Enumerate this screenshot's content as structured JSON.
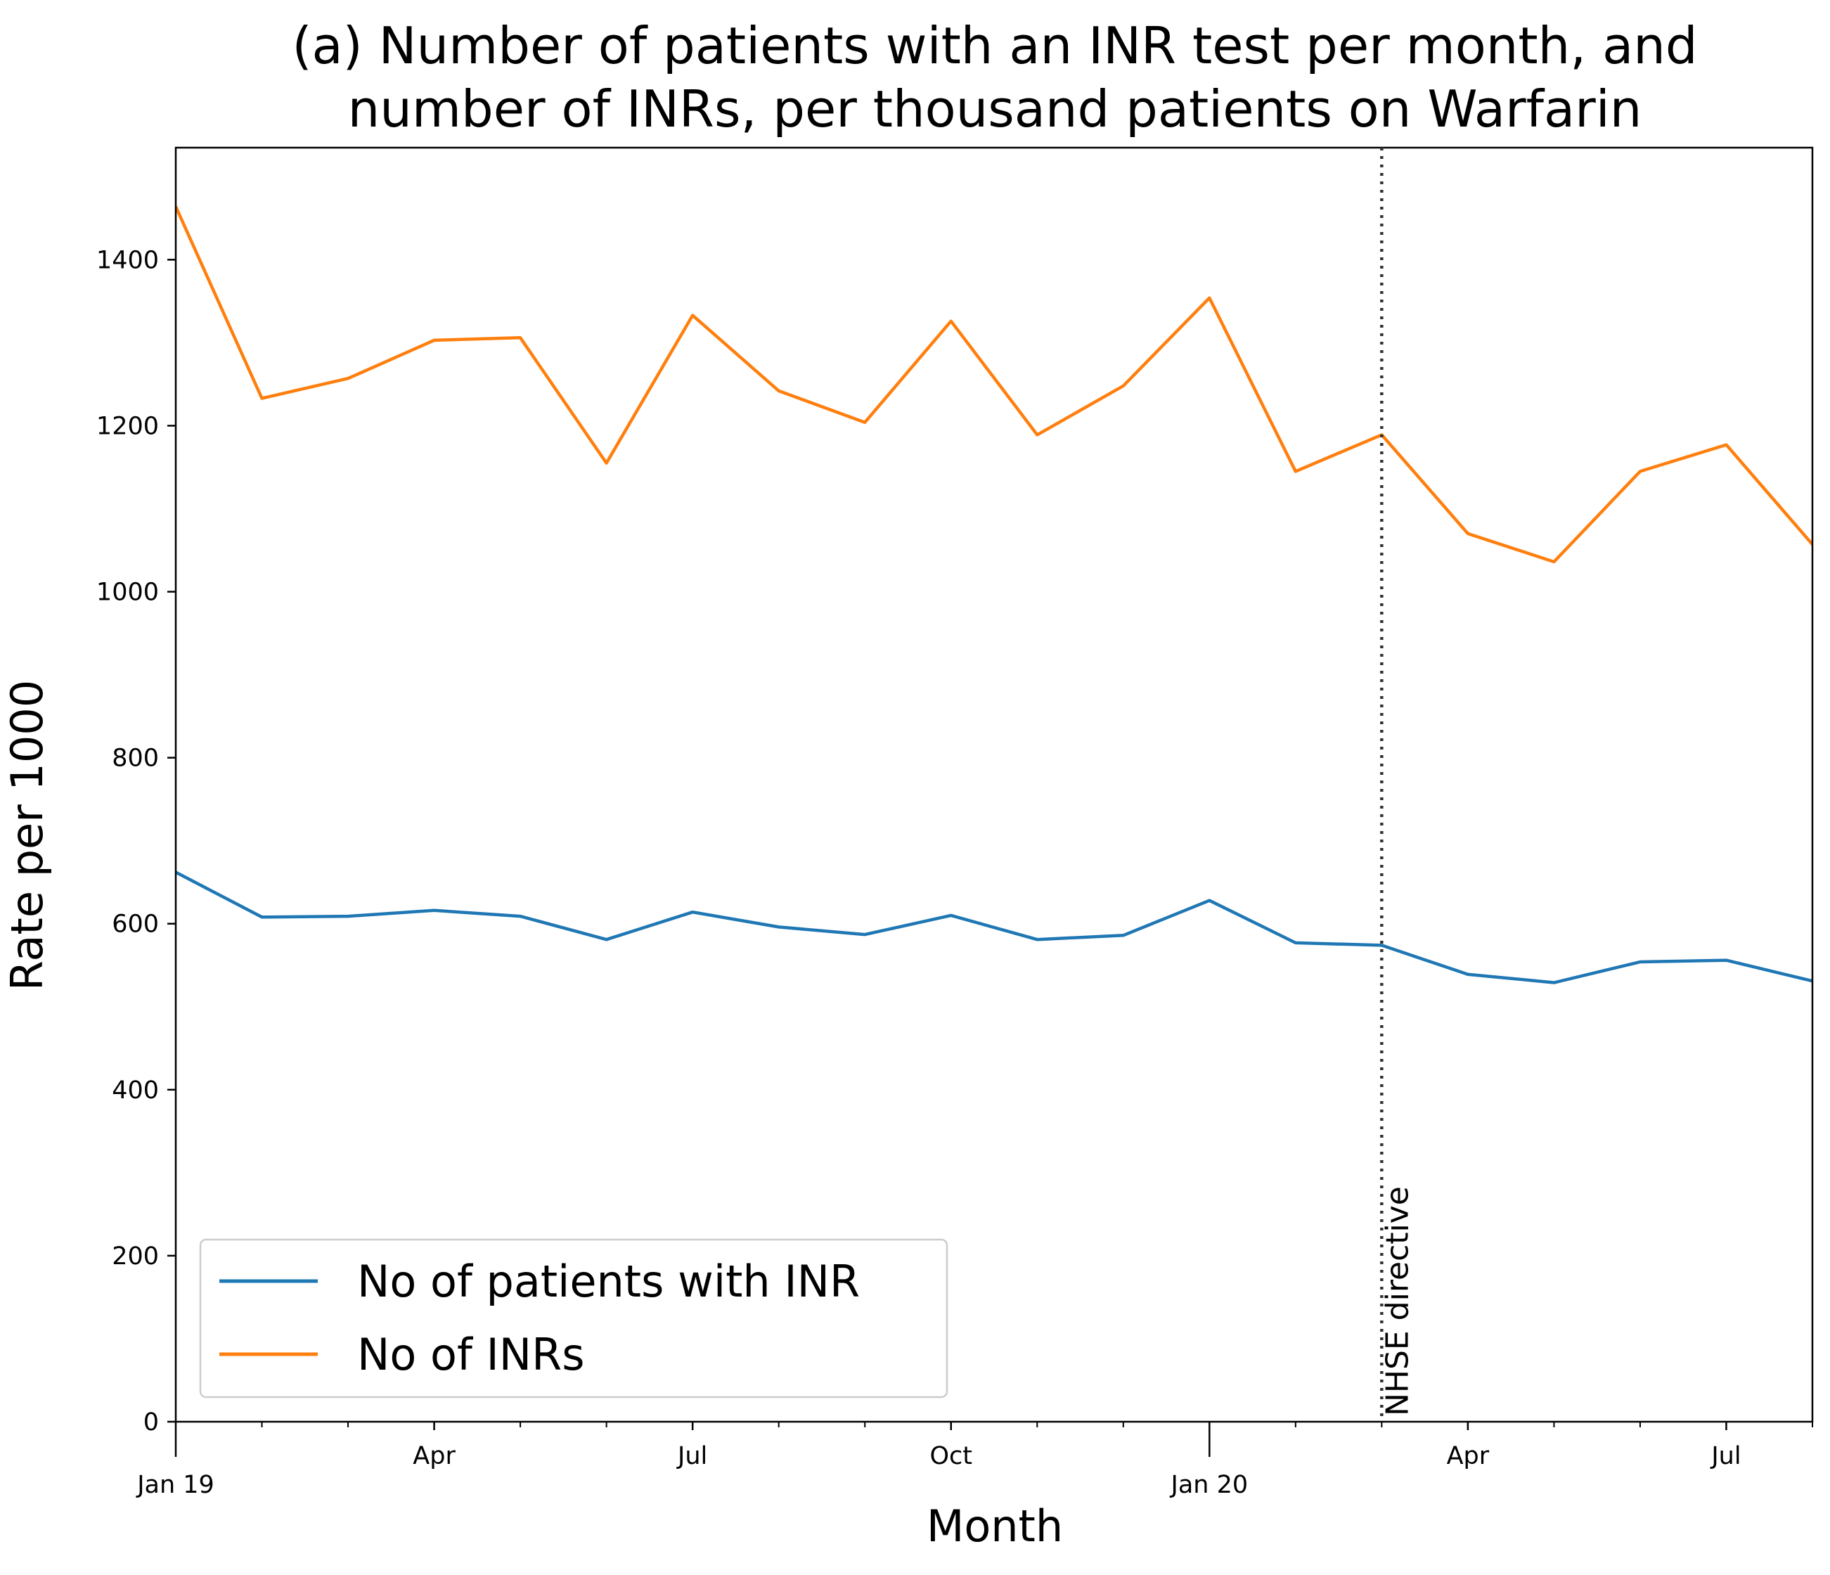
{
  "chart_data": {
    "type": "line",
    "title": [
      "(a) Number of patients with an INR test per month, and",
      "number of INRs, per thousand patients on Warfarin"
    ],
    "xlabel": "Month",
    "ylabel": "Rate per 1000",
    "x": [
      "2019-01",
      "2019-02",
      "2019-03",
      "2019-04",
      "2019-05",
      "2019-06",
      "2019-07",
      "2019-08",
      "2019-09",
      "2019-10",
      "2019-11",
      "2019-12",
      "2020-01",
      "2020-02",
      "2020-03",
      "2020-04",
      "2020-05",
      "2020-06",
      "2020-07",
      "2020-08"
    ],
    "xlim": [
      "2019-01",
      "2020-08"
    ],
    "ylim": [
      0,
      1535
    ],
    "yticks": [
      0,
      200,
      400,
      600,
      800,
      1000,
      1200,
      1400
    ],
    "xticks": [
      {
        "x": "2019-01",
        "label": "Jan 19",
        "major": true
      },
      {
        "x": "2019-04",
        "label": "Apr",
        "major": false
      },
      {
        "x": "2019-07",
        "label": "Jul",
        "major": false
      },
      {
        "x": "2019-10",
        "label": "Oct",
        "major": false
      },
      {
        "x": "2020-01",
        "label": "Jan 20",
        "major": true
      },
      {
        "x": "2020-04",
        "label": "Apr",
        "major": false
      },
      {
        "x": "2020-07",
        "label": "Jul",
        "major": false
      }
    ],
    "series": [
      {
        "name": "No of patients with INR",
        "color": "#1f77b4",
        "values": [
          662,
          608,
          609,
          616,
          609,
          581,
          614,
          596,
          587,
          610,
          581,
          586,
          628,
          577,
          574,
          539,
          529,
          554,
          556,
          531
        ]
      },
      {
        "name": "No of INRs",
        "color": "#ff7f0e",
        "values": [
          1464,
          1233,
          1257,
          1303,
          1306,
          1155,
          1333,
          1242,
          1204,
          1326,
          1189,
          1248,
          1354,
          1145,
          1189,
          1070,
          1036,
          1145,
          1177,
          1057
        ]
      }
    ],
    "annotations": [
      {
        "type": "vline",
        "x": "2020-03",
        "style": "dotted",
        "label": "NHSE directive"
      }
    ],
    "legend": "lower-left",
    "grid": false
  }
}
